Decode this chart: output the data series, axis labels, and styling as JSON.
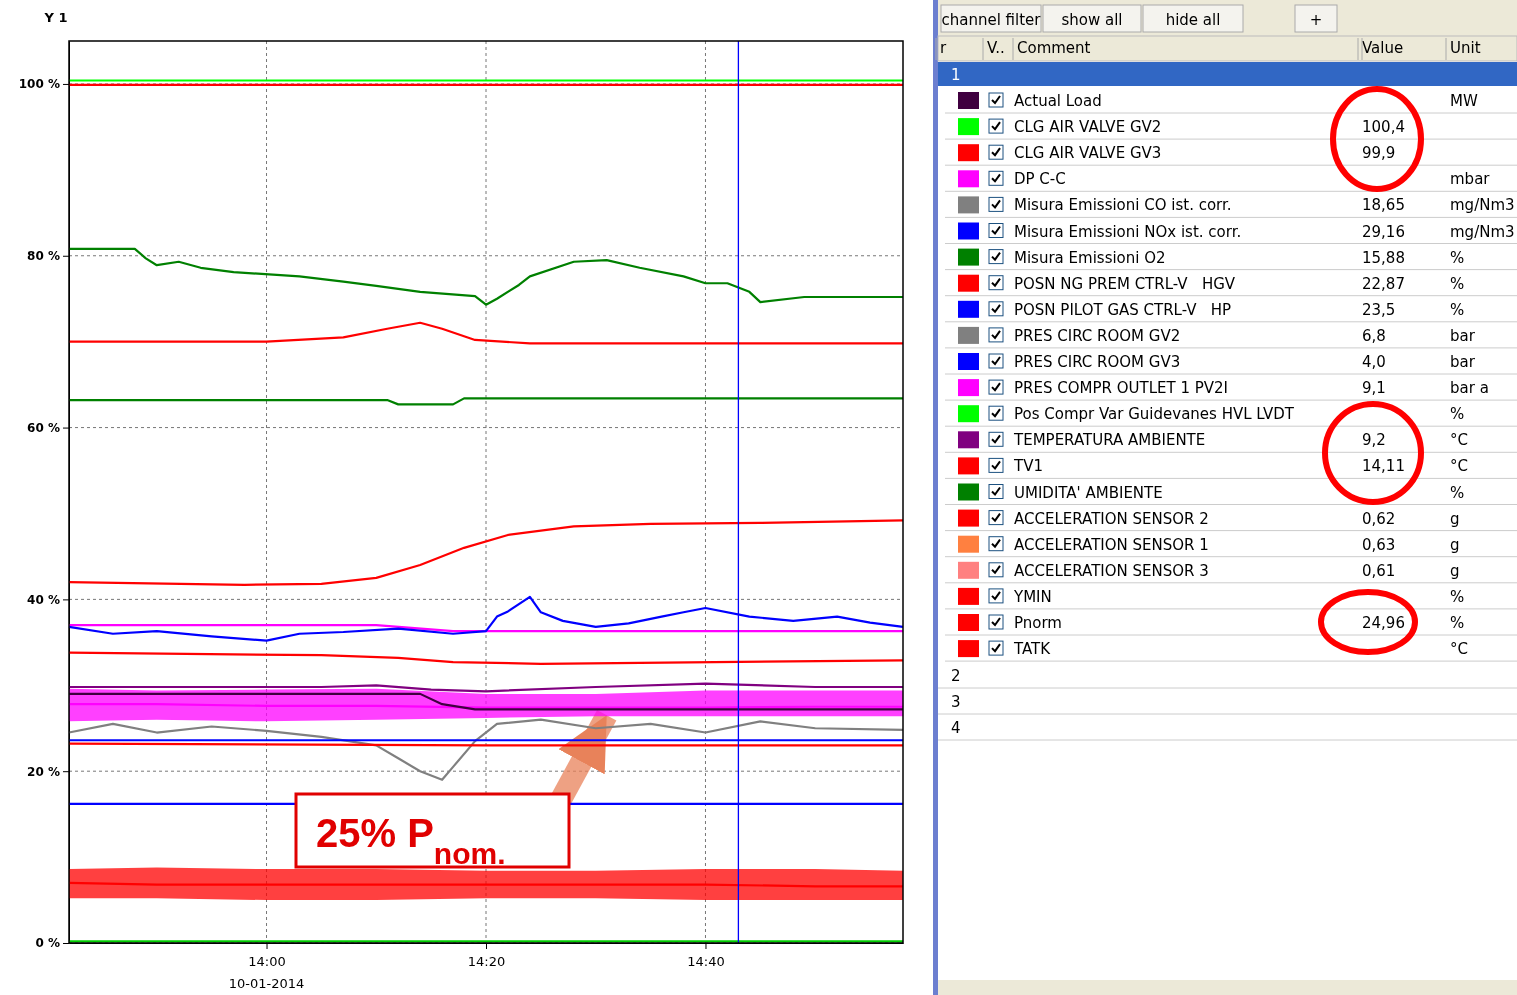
{
  "chart_data": [
    {
      "type": "line",
      "ylabel": "Y 1",
      "xlabel": "10-01-2014",
      "xlim": [
        "2014-01-10T13:42",
        "2014-01-10T14:58"
      ],
      "xticks": [
        {
          "value": "2014-01-10T14:00",
          "label": "14:00"
        },
        {
          "value": "2014-01-10T14:20",
          "label": "14:20"
        },
        {
          "value": "2014-01-10T14:40",
          "label": "14:40"
        }
      ],
      "ylim": [
        0,
        105
      ],
      "yticks": [
        {
          "value": 0,
          "label": "0 %"
        },
        {
          "value": 20,
          "label": "20 %"
        },
        {
          "value": 40,
          "label": "40 %"
        },
        {
          "value": 60,
          "label": "60 %"
        },
        {
          "value": 80,
          "label": "80 %"
        },
        {
          "value": 100,
          "label": "100 %"
        }
      ],
      "grid": true,
      "line_style": "solid",
      "marker": "none",
      "ref_lines": [
        {
          "axis": "x",
          "value": "2014-01-10T14:43",
          "color": "#0000ff"
        }
      ],
      "annotations": [
        {
          "text": "25% P$_{nom.}$",
          "x": "2014-01-10T14:31",
          "y": 26.5
        }
      ],
      "series": [
        {
          "color": "#00ff00",
          "x": [
            "2014-01-10T13:42",
            "2014-01-10T14:58"
          ],
          "values": [
            100.4,
            100.4
          ]
        },
        {
          "color": "#ff0000",
          "x": [
            "2014-01-10T13:42",
            "2014-01-10T14:58"
          ],
          "values": [
            99.9,
            99.9
          ]
        },
        {
          "color": "#008000",
          "x": [
            "2014-01-10T13:42",
            "2014-01-10T13:48",
            "2014-01-10T13:49",
            "2014-01-10T13:50",
            "2014-01-10T13:52",
            "2014-01-10T13:54",
            "2014-01-10T13:57",
            "2014-01-10T14:03",
            "2014-01-10T14:07",
            "2014-01-10T14:10",
            "2014-01-10T14:14",
            "2014-01-10T14:19",
            "2014-01-10T14:20",
            "2014-01-10T14:21",
            "2014-01-10T14:23",
            "2014-01-10T14:24",
            "2014-01-10T14:28",
            "2014-01-10T14:31",
            "2014-01-10T14:34",
            "2014-01-10T14:38",
            "2014-01-10T14:40",
            "2014-01-10T14:42",
            "2014-01-10T14:44",
            "2014-01-10T14:45",
            "2014-01-10T14:49",
            "2014-01-10T14:53",
            "2014-01-10T14:58"
          ],
          "values": [
            80.8,
            80.8,
            79.7,
            78.9,
            79.3,
            78.6,
            78.1,
            77.6,
            77.0,
            76.5,
            75.8,
            75.3,
            74.3,
            75.0,
            76.6,
            77.6,
            79.3,
            79.5,
            78.6,
            77.6,
            76.8,
            76.8,
            75.8,
            74.6,
            75.2,
            75.2,
            75.2
          ]
        },
        {
          "color": "#ff0000",
          "x": [
            "2014-01-10T13:42",
            "2014-01-10T14:00",
            "2014-01-10T14:07",
            "2014-01-10T14:11",
            "2014-01-10T14:14",
            "2014-01-10T14:16",
            "2014-01-10T14:19",
            "2014-01-10T14:24",
            "2014-01-10T14:58"
          ],
          "values": [
            70.0,
            70.0,
            70.5,
            71.5,
            72.2,
            71.5,
            70.2,
            69.8,
            69.8
          ]
        },
        {
          "color": "#008000",
          "x": [
            "2014-01-10T13:42",
            "2014-01-10T14:11",
            "2014-01-10T14:12",
            "2014-01-10T14:17",
            "2014-01-10T14:18",
            "2014-01-10T14:58"
          ],
          "values": [
            63.2,
            63.2,
            62.7,
            62.7,
            63.4,
            63.4
          ]
        },
        {
          "color": "#ff0000",
          "x": [
            "2014-01-10T13:42",
            "2014-01-10T13:58",
            "2014-01-10T14:05",
            "2014-01-10T14:10",
            "2014-01-10T14:14",
            "2014-01-10T14:18",
            "2014-01-10T14:22",
            "2014-01-10T14:28",
            "2014-01-10T14:35",
            "2014-01-10T14:45",
            "2014-01-10T14:58"
          ],
          "values": [
            42.0,
            41.7,
            41.8,
            42.5,
            44.0,
            46.0,
            47.5,
            48.5,
            48.8,
            48.9,
            49.2
          ]
        },
        {
          "color": "#ff00ff",
          "x": [
            "2014-01-10T13:42",
            "2014-01-10T14:10",
            "2014-01-10T14:17",
            "2014-01-10T14:58"
          ],
          "values": [
            37.0,
            37.0,
            36.3,
            36.3
          ]
        },
        {
          "color": "#0000ff",
          "x": [
            "2014-01-10T13:42",
            "2014-01-10T13:46",
            "2014-01-10T13:50",
            "2014-01-10T13:55",
            "2014-01-10T14:00",
            "2014-01-10T14:03",
            "2014-01-10T14:07",
            "2014-01-10T14:12",
            "2014-01-10T14:17",
            "2014-01-10T14:20",
            "2014-01-10T14:21",
            "2014-01-10T14:22",
            "2014-01-10T14:24",
            "2014-01-10T14:25",
            "2014-01-10T14:27",
            "2014-01-10T14:30",
            "2014-01-10T14:33",
            "2014-01-10T14:36",
            "2014-01-10T14:38",
            "2014-01-10T14:40",
            "2014-01-10T14:44",
            "2014-01-10T14:48",
            "2014-01-10T14:52",
            "2014-01-10T14:55",
            "2014-01-10T14:58"
          ],
          "values": [
            36.8,
            36.0,
            36.3,
            35.7,
            35.2,
            36.0,
            36.2,
            36.6,
            36.0,
            36.3,
            38.0,
            38.6,
            40.3,
            38.5,
            37.5,
            36.8,
            37.2,
            38.0,
            38.5,
            39.0,
            38.0,
            37.5,
            38.0,
            37.3,
            36.8
          ]
        },
        {
          "color": "#ff0000",
          "x": [
            "2014-01-10T13:42",
            "2014-01-10T14:05",
            "2014-01-10T14:12",
            "2014-01-10T14:17",
            "2014-01-10T14:25",
            "2014-01-10T14:58"
          ],
          "values": [
            33.8,
            33.5,
            33.2,
            32.7,
            32.5,
            32.9
          ]
        },
        {
          "color": "#800080",
          "x": [
            "2014-01-10T13:42",
            "2014-01-10T14:05",
            "2014-01-10T14:10",
            "2014-01-10T14:15",
            "2014-01-10T14:20",
            "2014-01-10T14:30",
            "2014-01-10T14:40",
            "2014-01-10T14:50",
            "2014-01-10T14:58"
          ],
          "values": [
            29.8,
            29.8,
            30.0,
            29.5,
            29.3,
            29.8,
            30.2,
            29.8,
            29.8
          ]
        },
        {
          "color": "#ff00ff",
          "x": [
            "2014-01-10T13:42",
            "2014-01-10T13:50",
            "2014-01-10T14:00",
            "2014-01-10T14:10",
            "2014-01-10T14:20",
            "2014-01-10T14:30",
            "2014-01-10T14:40",
            "2014-01-10T14:50",
            "2014-01-10T14:58"
          ],
          "values": [
            27.8,
            27.8,
            27.6,
            27.6,
            27.4,
            27.4,
            27.4,
            27.5,
            27.5
          ],
          "lower": [
            25.8,
            26.0,
            25.8,
            26.0,
            26.2,
            26.4,
            26.4,
            26.4,
            26.4
          ],
          "upper": [
            29.6,
            29.4,
            29.5,
            29.6,
            29.0,
            29.0,
            29.4,
            29.4,
            29.4
          ]
        },
        {
          "color": "#400040",
          "x": [
            "2014-01-10T13:42",
            "2014-01-10T14:14",
            "2014-01-10T14:16",
            "2014-01-10T14:19",
            "2014-01-10T14:58"
          ],
          "values": [
            29.0,
            29.0,
            27.8,
            27.2,
            27.2
          ]
        },
        {
          "color": "#808080",
          "x": [
            "2014-01-10T13:42",
            "2014-01-10T13:46",
            "2014-01-10T13:50",
            "2014-01-10T13:55",
            "2014-01-10T14:00",
            "2014-01-10T14:05",
            "2014-01-10T14:10",
            "2014-01-10T14:12",
            "2014-01-10T14:14",
            "2014-01-10T14:16",
            "2014-01-10T14:17",
            "2014-01-10T14:19",
            "2014-01-10T14:21",
            "2014-01-10T14:25",
            "2014-01-10T14:30",
            "2014-01-10T14:35",
            "2014-01-10T14:40",
            "2014-01-10T14:45",
            "2014-01-10T14:50",
            "2014-01-10T14:58"
          ],
          "values": [
            24.5,
            25.5,
            24.5,
            25.2,
            24.7,
            24.0,
            23.0,
            21.5,
            20.0,
            19.0,
            20.5,
            23.5,
            25.5,
            26.0,
            25.0,
            25.5,
            24.5,
            25.8,
            25.0,
            24.8
          ]
        },
        {
          "color": "#0000ff",
          "x": [
            "2014-01-10T13:42",
            "2014-01-10T14:58"
          ],
          "values": [
            23.6,
            23.6
          ]
        },
        {
          "color": "#ff0000",
          "x": [
            "2014-01-10T13:42",
            "2014-01-10T14:20",
            "2014-01-10T14:58"
          ],
          "values": [
            23.2,
            23.0,
            23.0
          ]
        },
        {
          "color": "#0000ff",
          "x": [
            "2014-01-10T13:42",
            "2014-01-10T14:58"
          ],
          "values": [
            16.2,
            16.2
          ]
        },
        {
          "color": "#ff0000",
          "x": [
            "2014-01-10T13:42",
            "2014-01-10T13:50",
            "2014-01-10T14:00",
            "2014-01-10T14:10",
            "2014-01-10T14:20",
            "2014-01-10T14:30",
            "2014-01-10T14:40",
            "2014-01-10T14:50",
            "2014-01-10T14:58"
          ],
          "values": [
            7.0,
            6.8,
            6.8,
            6.8,
            6.8,
            6.8,
            6.8,
            6.6,
            6.6
          ],
          "lower": [
            5.2,
            5.2,
            5.0,
            5.0,
            5.2,
            5.2,
            5.0,
            5.0,
            5.0
          ],
          "upper": [
            8.6,
            8.8,
            8.6,
            8.6,
            8.4,
            8.4,
            8.6,
            8.6,
            8.4
          ]
        },
        {
          "color": "#00cc00",
          "x": [
            "2014-01-10T13:42",
            "2014-01-10T14:58"
          ],
          "values": [
            0.2,
            0.2
          ]
        }
      ]
    },
    {
      "type": "other",
      "categories": [
        "Actual Load",
        "CLG AIR VALVE GV2",
        "CLG AIR VALVE GV3",
        "DP C-C",
        "Misura Emissioni CO ist. corr.",
        "Misura Emissioni NOx ist. corr.",
        "Misura Emissioni O2",
        "POSN NG PREM CTRL-V   HGV",
        "POSN PILOT GAS CTRL-V   HP",
        "PRES CIRC ROOM GV2",
        "PRES CIRC ROOM GV3",
        "PRES COMPR OUTLET 1 PV2I",
        "Pos Compr Var Guidevanes HVL LVDT",
        "TEMPERATURA AMBIENTE",
        "TV1",
        "UMIDITA' AMBIENTE",
        "ACCELERATION SENSOR 2",
        "ACCELERATION SENSOR 1",
        "ACCELERATION SENSOR 3",
        "YMIN",
        "Pnorm",
        "TATK"
      ],
      "colors": [
        "#400040",
        "#00ff00",
        "#ff0000",
        "#ff00ff",
        "#808080",
        "#0000ff",
        "#008000",
        "#ff0000",
        "#0000ff",
        "#808080",
        "#0000ff",
        "#ff00ff",
        "#00ff00",
        "#800080",
        "#ff0000",
        "#008000",
        "#ff0000",
        "#ff8040",
        "#ff8080",
        "#ff0000",
        "#ff0000",
        "#ff0000"
      ],
      "annotations": [
        "channel filter",
        "show all",
        "hide all",
        "+",
        "r",
        "V..",
        "Comment",
        "Value",
        "Unit",
        "1",
        "2",
        "3",
        "4",
        null,
        "100,4",
        "99,9",
        null,
        "18,65",
        "29,16",
        "15,88",
        "22,87",
        "23,5",
        "6,8",
        "4,0",
        "9,1",
        null,
        "9,2",
        "14,11",
        null,
        "0,62",
        "0,63",
        "0,61",
        null,
        "24,96",
        null,
        "MW",
        null,
        null,
        "mbar",
        "mg/Nm3",
        "mg/Nm3",
        "%",
        "%",
        "%",
        "bar",
        "bar",
        "bar a",
        "%",
        "°C",
        "°C",
        "%",
        "g",
        "g",
        "g",
        "%",
        "%",
        "°C"
      ]
    }
  ]
}
